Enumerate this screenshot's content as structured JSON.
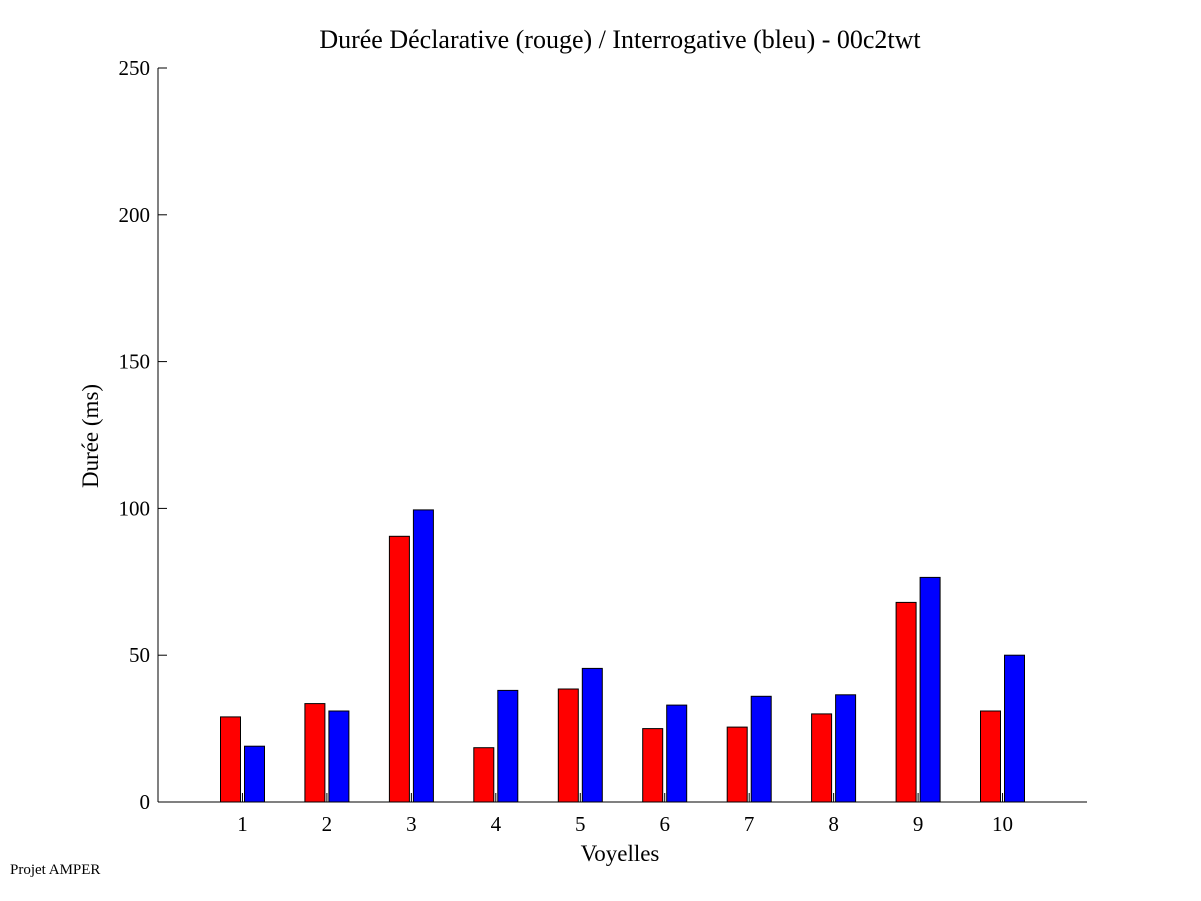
{
  "chart_data": {
    "type": "bar",
    "title": "Durée Déclarative (rouge) / Interrogative (bleu) - 00c2twt",
    "xlabel": "Voyelles",
    "ylabel": "Durée (ms)",
    "ylim": [
      0,
      250
    ],
    "yticks": [
      0,
      50,
      100,
      150,
      200,
      250
    ],
    "categories": [
      "1",
      "2",
      "3",
      "4",
      "5",
      "6",
      "7",
      "8",
      "9",
      "10"
    ],
    "series": [
      {
        "color": "#ff0000",
        "values": [
          29,
          33.5,
          90.5,
          18.5,
          38.5,
          25,
          25.5,
          30,
          68,
          31
        ]
      },
      {
        "color": "#0000ff",
        "values": [
          19,
          31,
          99.5,
          38,
          45.5,
          33,
          36,
          36.5,
          76.5,
          50
        ]
      }
    ],
    "grid": false,
    "legend": "none"
  },
  "footer": {
    "text": "Projet AMPER"
  }
}
